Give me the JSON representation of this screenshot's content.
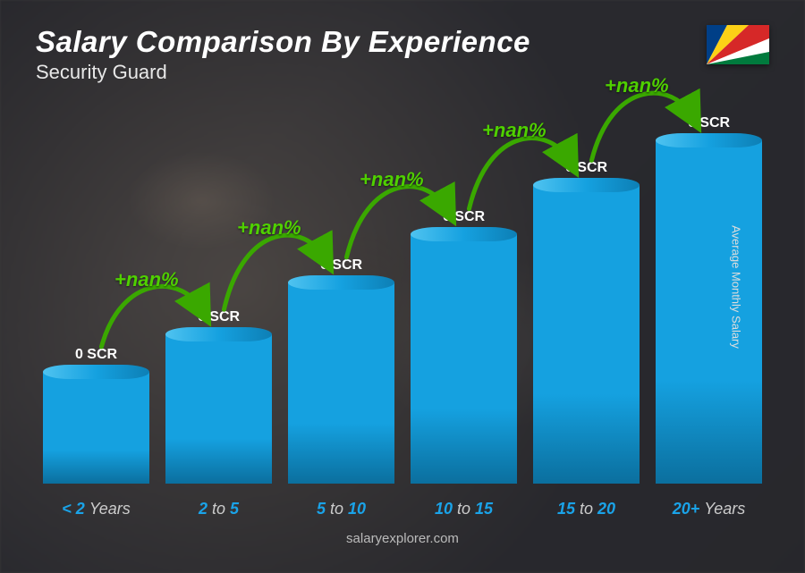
{
  "title": "Salary Comparison By Experience",
  "subtitle": "Security Guard",
  "y_axis_label": "Average Monthly Salary",
  "footer": "salaryexplorer.com",
  "flag": {
    "country": "Seychelles",
    "colors": {
      "blue": "#003f87",
      "yellow": "#fcd116",
      "red": "#d62828",
      "white": "#ffffff",
      "green": "#007a3d"
    }
  },
  "chart": {
    "type": "bar",
    "bar_color_front": "#15a1e0",
    "bar_color_top": "#4fc3f0",
    "bar_color_side": "#0d7fb5",
    "bar_gradient_dark": "#0b6f9e",
    "increase_color": "#4fd000",
    "arrow_color": "#3aa800",
    "value_text_color": "#ffffff",
    "x_label_color": "#1aa3e8",
    "x_label_dim_color": "#cccccc",
    "background_overlay": "rgba(40,40,45,0.85)",
    "title_fontsize": 33,
    "subtitle_fontsize": 22,
    "value_fontsize": 16,
    "increase_fontsize": 22,
    "x_label_fontsize": 18,
    "bars": [
      {
        "category": "< 2 Years",
        "cat_lead": "< 2",
        "cat_tail": "Years",
        "value_label": "0 SCR",
        "height_pct": 30
      },
      {
        "category": "2 to 5",
        "cat_lead": "2",
        "cat_mid": "to",
        "cat_tail": "5",
        "value_label": "0 SCR",
        "height_pct": 40,
        "increase": "+nan%"
      },
      {
        "category": "5 to 10",
        "cat_lead": "5",
        "cat_mid": "to",
        "cat_tail": "10",
        "value_label": "0 SCR",
        "height_pct": 54,
        "increase": "+nan%"
      },
      {
        "category": "10 to 15",
        "cat_lead": "10",
        "cat_mid": "to",
        "cat_tail": "15",
        "value_label": "0 SCR",
        "height_pct": 67,
        "increase": "+nan%"
      },
      {
        "category": "15 to 20",
        "cat_lead": "15",
        "cat_mid": "to",
        "cat_tail": "20",
        "value_label": "0 SCR",
        "height_pct": 80,
        "increase": "+nan%"
      },
      {
        "category": "20+ Years",
        "cat_lead": "20+",
        "cat_tail": "Years",
        "value_label": "0 SCR",
        "height_pct": 92,
        "increase": "+nan%"
      }
    ]
  }
}
